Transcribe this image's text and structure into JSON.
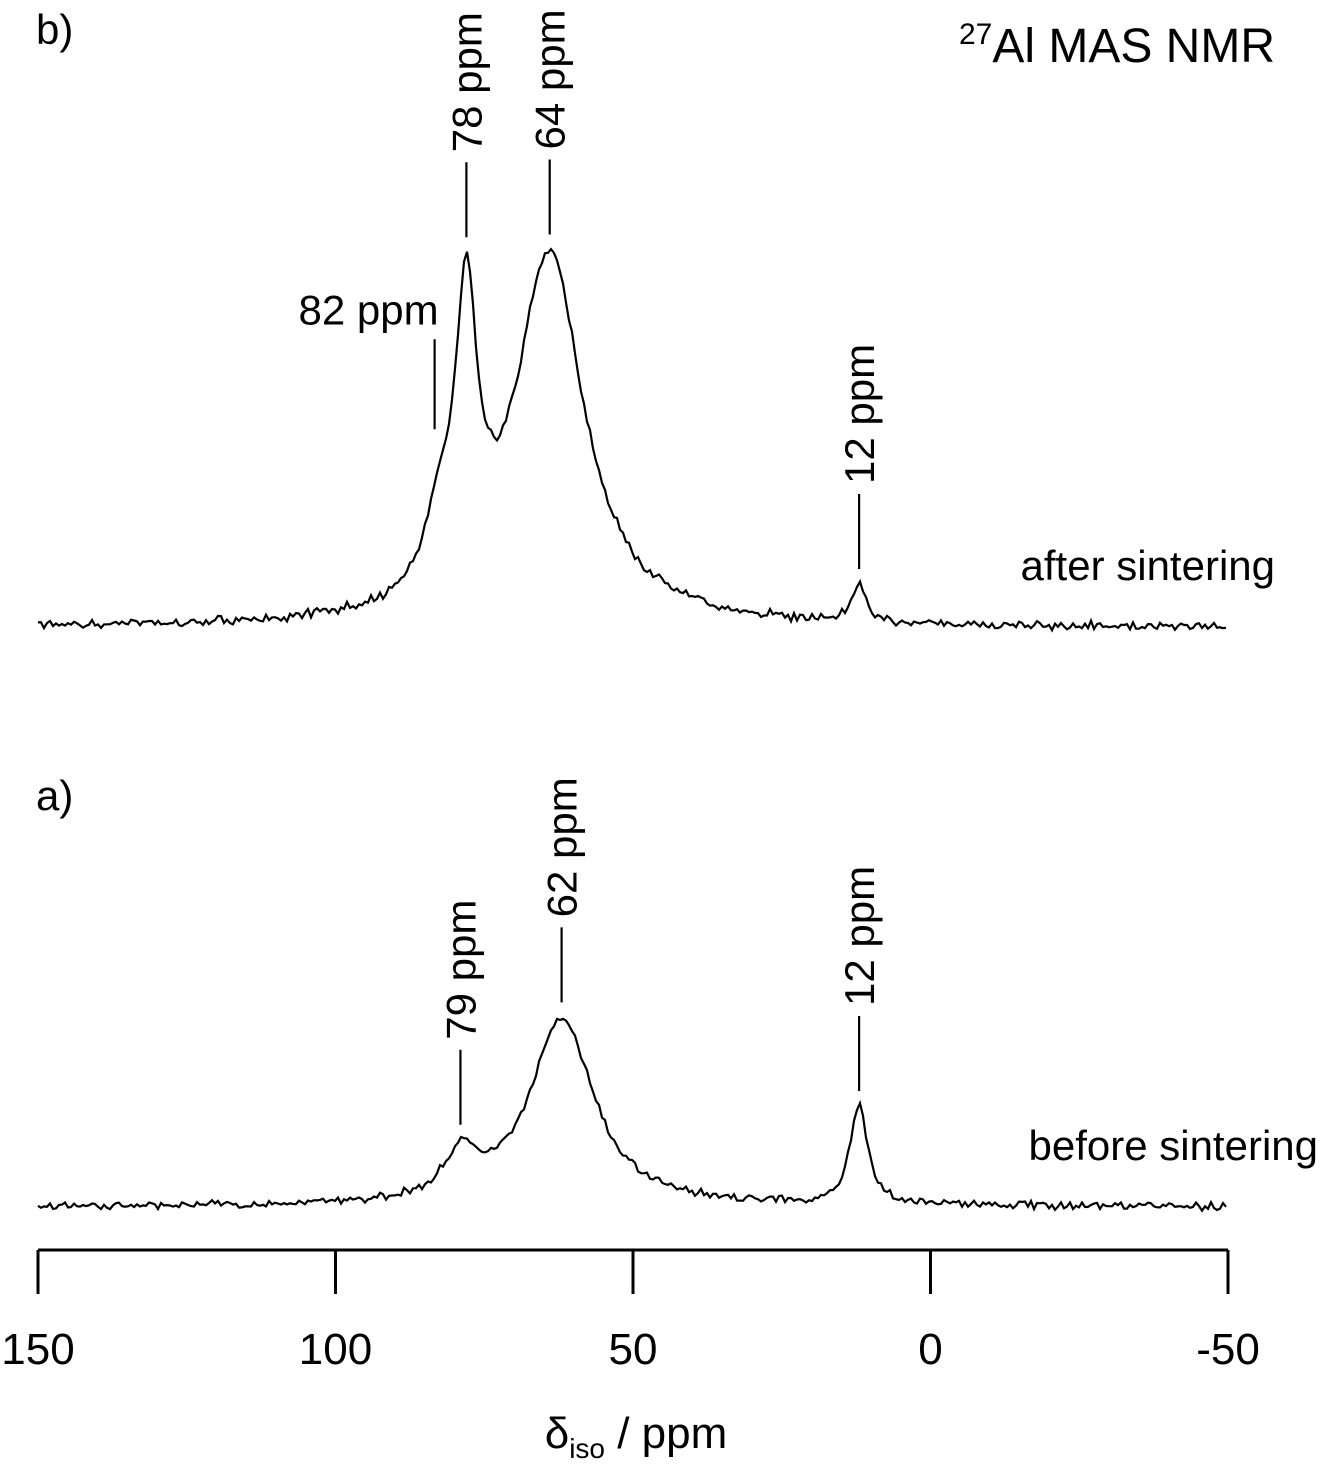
{
  "chart_data": {
    "type": "line",
    "title_prefix": "27",
    "title_main": "Al MAS NMR",
    "xlabel_symbol": "δ",
    "xlabel_sub": "iso",
    "xlabel_unit": " / ppm",
    "xlim": [
      150,
      -50
    ],
    "x_reversed": true,
    "x_ticks": [
      150,
      100,
      50,
      0,
      -50
    ],
    "x_tick_labels": [
      "150",
      "100",
      "50",
      "0",
      "-50"
    ],
    "grid": false,
    "spectra": [
      {
        "panel_label": "b)",
        "name": "after sintering",
        "peaks": [
          {
            "ppm": 78,
            "label": "78 ppm",
            "height": 0.97
          },
          {
            "ppm": 64,
            "label": "64 ppm",
            "height": 1.0
          },
          {
            "ppm": 82,
            "label": "82 ppm",
            "height": 0.35,
            "shoulder": true
          },
          {
            "ppm": 12,
            "label": "12 ppm",
            "height": 0.12
          }
        ],
        "components": [
          {
            "center": 78,
            "height": 0.76,
            "width": 2.2
          },
          {
            "center": 82.5,
            "height": 0.18,
            "width": 3.0
          },
          {
            "center": 64,
            "height": 1.0,
            "width": 7.0
          },
          {
            "center": 12,
            "height": 0.1,
            "width": 1.5
          }
        ]
      },
      {
        "panel_label": "a)",
        "name": "before sintering",
        "peaks": [
          {
            "ppm": 79,
            "label": "79 ppm",
            "height": 0.23
          },
          {
            "ppm": 62,
            "label": "62 ppm",
            "height": 1.0
          },
          {
            "ppm": 12,
            "label": "12 ppm",
            "height": 0.52
          }
        ],
        "components": [
          {
            "center": 79,
            "height": 0.23,
            "width": 3.2
          },
          {
            "center": 62,
            "height": 1.0,
            "width": 6.5
          },
          {
            "center": 12,
            "height": 0.52,
            "width": 1.8
          }
        ]
      }
    ]
  }
}
